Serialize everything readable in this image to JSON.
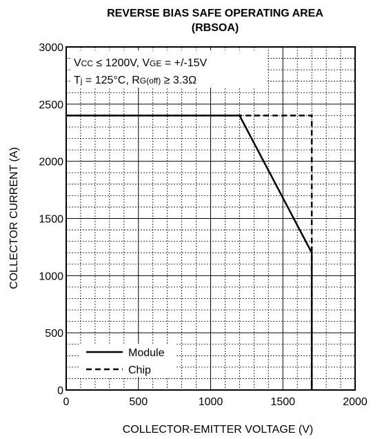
{
  "chart_data": {
    "type": "line",
    "title_line1": "REVERSE BIAS SAFE OPERATING AREA",
    "title_line2": "(RBSOA)",
    "xlabel": "COLLECTOR-EMITTER VOLTAGE (V)",
    "ylabel": "COLLECTOR CURRENT (A)",
    "xlim": [
      0,
      2000
    ],
    "ylim": [
      0,
      3000
    ],
    "x_major_ticks": [
      0,
      500,
      1000,
      1500,
      2000
    ],
    "y_major_ticks": [
      0,
      500,
      1000,
      1500,
      2000,
      2500,
      3000
    ],
    "x_tick_labels": [
      "0",
      "500",
      "1000",
      "1500",
      "2000"
    ],
    "y_tick_labels": [
      "0",
      "500",
      "1000",
      "1500",
      "2000",
      "2500",
      "3000"
    ],
    "x_minor_step": 100,
    "y_minor_step": 100,
    "grid": true,
    "legend_position": "bottom-left",
    "annotation": {
      "line1": {
        "vcc_base": "V",
        "vcc_sub": "CC",
        "vcc_rest": " ≤ 1200V, V",
        "vge_sub": "GE",
        "vge_rest": " = +/-15V"
      },
      "line2": {
        "tj_base": "T",
        "tj_sub": "j",
        "tj_rest": " = 125°C, R",
        "rg_sub": "G(off)",
        "rg_rest": " ≥ 3.3Ω"
      }
    },
    "series": [
      {
        "name": "Module",
        "style": "solid",
        "color": "#000000",
        "points": [
          [
            0,
            2400
          ],
          [
            1200,
            2400
          ],
          [
            1700,
            1200
          ],
          [
            1700,
            0
          ]
        ]
      },
      {
        "name": "Chip",
        "style": "dashed",
        "color": "#000000",
        "points": [
          [
            0,
            2400
          ],
          [
            1700,
            2400
          ],
          [
            1700,
            0
          ]
        ]
      }
    ]
  }
}
